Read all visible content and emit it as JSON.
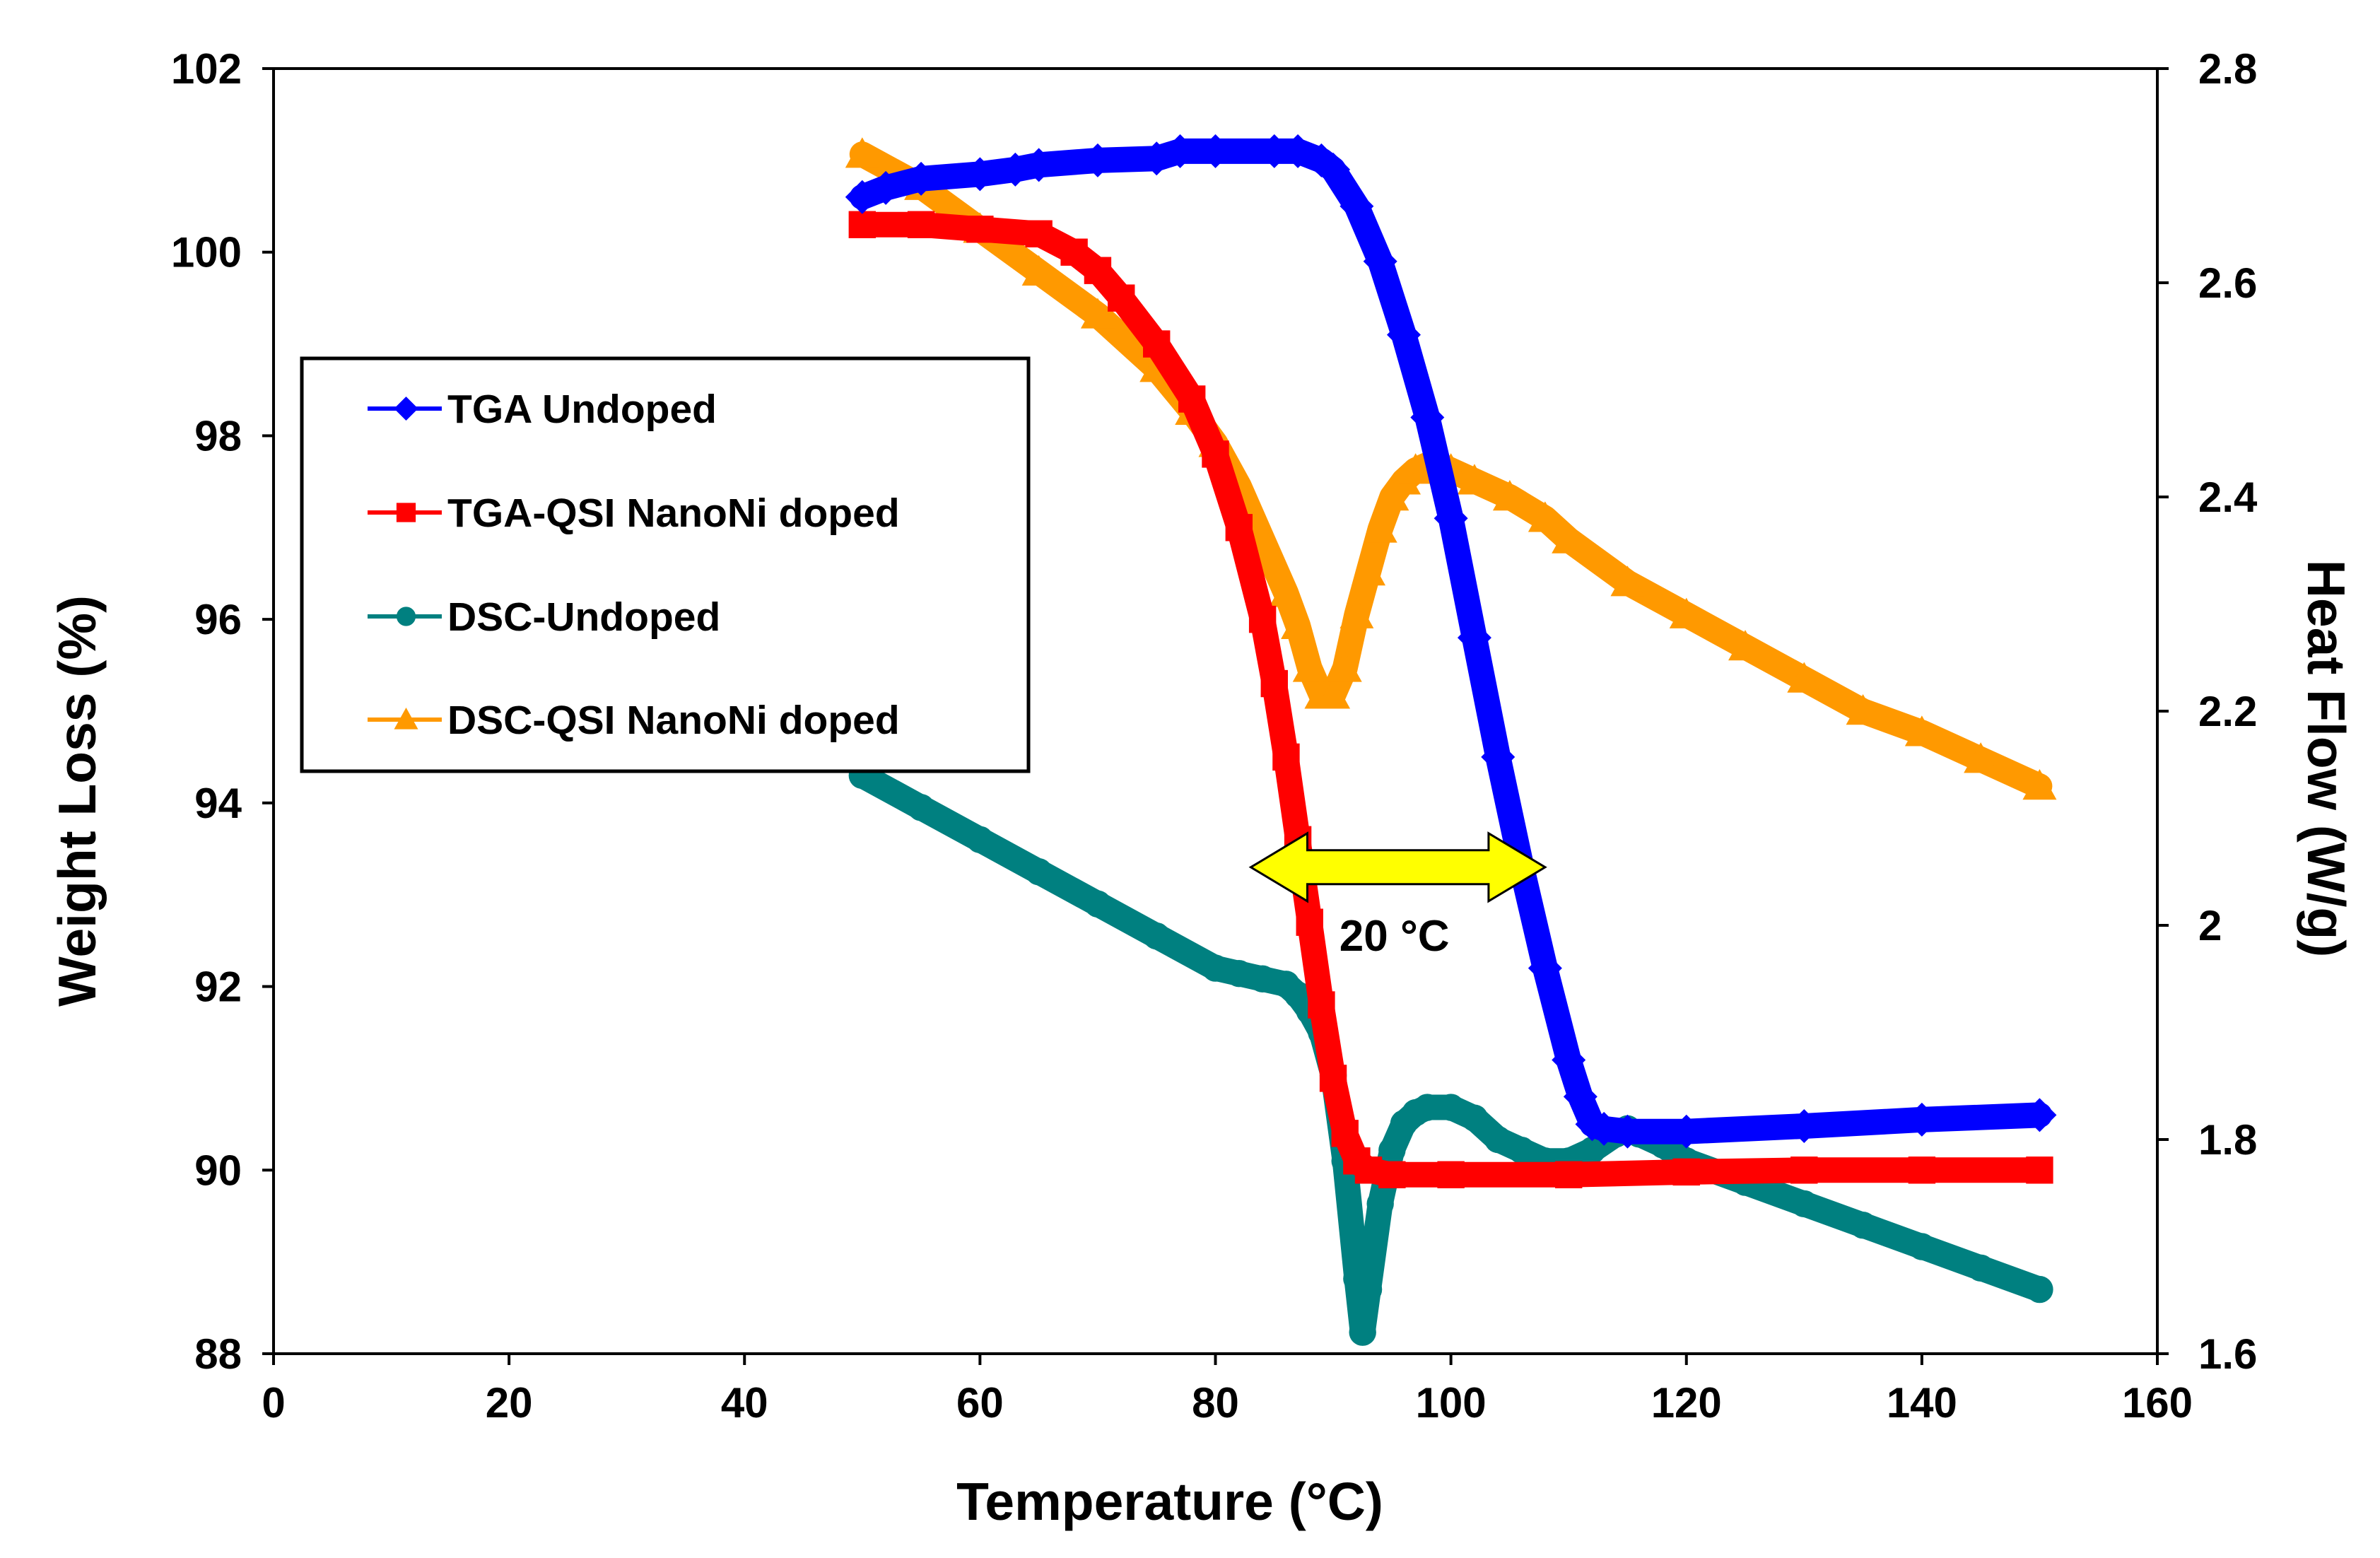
{
  "chart_data": {
    "type": "line",
    "xlabel": "Temperature (°C)",
    "ylabel_left": "Weight Loss (%)",
    "ylabel_right": "Heat Flow (W/g)",
    "xlim": [
      0,
      160
    ],
    "ylim_left": [
      88,
      102
    ],
    "ylim_right": [
      1.6,
      2.8
    ],
    "x_ticks": [
      0,
      20,
      40,
      60,
      80,
      100,
      120,
      140,
      160
    ],
    "y_left_ticks": [
      88,
      90,
      92,
      94,
      96,
      98,
      100,
      102
    ],
    "y_right_ticks": [
      1.6,
      1.8,
      2,
      2.2,
      2.4,
      2.6,
      2.8
    ],
    "y_right_tick_labels": [
      "1.6",
      "1.8",
      "2",
      "2.2",
      "2.4",
      "2.6",
      "2.8"
    ],
    "grid": false,
    "legend_position": "left",
    "series": [
      {
        "name": "TGA Undoped",
        "axis": "left",
        "color": "#0000FF",
        "marker": "diamond",
        "x": [
          50,
          52,
          55,
          60,
          63,
          65,
          70,
          75,
          77,
          80,
          85,
          87,
          89,
          90,
          92,
          94,
          96,
          98,
          100,
          102,
          104,
          106,
          108,
          110,
          111,
          112,
          113,
          115,
          120,
          130,
          140,
          150
        ],
        "y": [
          100.6,
          100.7,
          100.8,
          100.85,
          100.9,
          100.95,
          101.0,
          101.02,
          101.1,
          101.1,
          101.1,
          101.1,
          101.0,
          100.9,
          100.5,
          99.9,
          99.1,
          98.2,
          97.1,
          95.8,
          94.5,
          93.3,
          92.2,
          91.2,
          90.8,
          90.5,
          90.45,
          90.42,
          90.42,
          90.48,
          90.55,
          90.6
        ]
      },
      {
        "name": "TGA-QSI NanoNi doped",
        "axis": "left",
        "color": "#FF0000",
        "marker": "square",
        "x": [
          50,
          55,
          60,
          65,
          68,
          70,
          72,
          75,
          78,
          80,
          82,
          84,
          85,
          86,
          87,
          88,
          89,
          90,
          91,
          92,
          93,
          95,
          100,
          110,
          120,
          130,
          140,
          150
        ],
        "y": [
          100.3,
          100.3,
          100.25,
          100.2,
          100.0,
          99.8,
          99.5,
          99.0,
          98.4,
          97.8,
          97.0,
          96.0,
          95.3,
          94.5,
          93.6,
          92.7,
          91.8,
          91.0,
          90.4,
          90.1,
          90.0,
          89.95,
          89.95,
          89.95,
          89.98,
          90.0,
          90.0,
          90.0
        ]
      },
      {
        "name": "DSC-Undoped",
        "axis": "right",
        "color": "#008080",
        "marker": "circle",
        "x": [
          50,
          55,
          60,
          65,
          70,
          75,
          80,
          82,
          84,
          86,
          87,
          88,
          89,
          90,
          91,
          92,
          92.5,
          93,
          94,
          95,
          96,
          97,
          98,
          100,
          102,
          104,
          106,
          108,
          110,
          112,
          114,
          115,
          116,
          118,
          120,
          125,
          130,
          135,
          140,
          145,
          150
        ],
        "y": [
          2.14,
          2.11,
          2.08,
          2.05,
          2.02,
          1.99,
          1.96,
          1.955,
          1.95,
          1.945,
          1.935,
          1.92,
          1.9,
          1.86,
          1.78,
          1.67,
          1.62,
          1.66,
          1.74,
          1.79,
          1.815,
          1.825,
          1.83,
          1.83,
          1.82,
          1.8,
          1.79,
          1.78,
          1.78,
          1.79,
          1.805,
          1.81,
          1.805,
          1.795,
          1.78,
          1.76,
          1.74,
          1.72,
          1.7,
          1.68,
          1.66
        ]
      },
      {
        "name": "DSC-QSI NanoNi doped",
        "axis": "right",
        "color": "#FF9900",
        "marker": "triangle",
        "x": [
          50,
          55,
          60,
          65,
          70,
          75,
          78,
          80,
          82,
          84,
          86,
          87,
          88,
          89,
          90,
          91,
          92,
          93,
          94,
          95,
          96,
          97,
          98,
          99,
          100,
          102,
          105,
          108,
          110,
          115,
          120,
          125,
          130,
          135,
          140,
          145,
          150
        ],
        "y": [
          2.72,
          2.69,
          2.65,
          2.61,
          2.57,
          2.52,
          2.48,
          2.45,
          2.41,
          2.36,
          2.31,
          2.28,
          2.24,
          2.215,
          2.215,
          2.24,
          2.29,
          2.33,
          2.37,
          2.4,
          2.415,
          2.425,
          2.43,
          2.43,
          2.425,
          2.415,
          2.4,
          2.38,
          2.36,
          2.32,
          2.29,
          2.26,
          2.23,
          2.2,
          2.18,
          2.155,
          2.13
        ]
      }
    ],
    "annotations": [
      {
        "type": "double-arrow",
        "text": "20 °C",
        "x_from": 83,
        "x_to": 108,
        "y": 93.3,
        "fill": "#FFFF00",
        "stroke": "#000000"
      }
    ]
  }
}
